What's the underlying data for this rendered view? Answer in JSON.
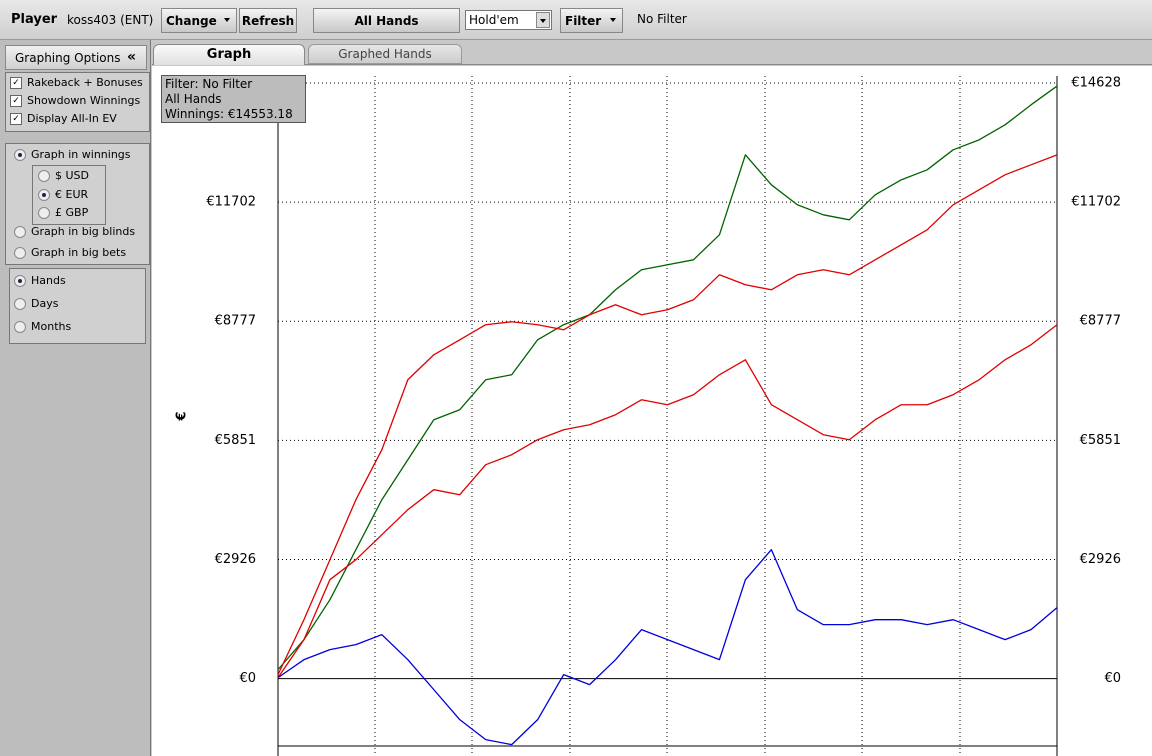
{
  "toolbar": {
    "player_label": "Player",
    "player_name": "koss403 (ENT)",
    "buttons": [
      "Change",
      "Refresh",
      "All Hands",
      "Filter"
    ],
    "game_select": "Hold'em",
    "filter_status": "No Filter"
  },
  "sidebar": {
    "title": "Graphing Options",
    "collapse": "«",
    "checkboxes": [
      "Rakeback + Bonuses",
      "Showdown Winnings",
      "Display All-In EV"
    ],
    "graph_modes": [
      "Graph in winnings",
      "Graph in big blinds",
      "Graph in big bets"
    ],
    "currencies": [
      "$ USD",
      "€ EUR",
      "£ GBP"
    ],
    "x_modes": [
      "Hands",
      "Days",
      "Months"
    ]
  },
  "tabs": [
    "Graph",
    "Graphed Hands"
  ],
  "chart_data": {
    "type": "line",
    "info_box": [
      "Filter: No Filter",
      "All Hands",
      "Winnings: €14553.18"
    ],
    "y_label": "€",
    "categories": [
      null,
      null,
      null,
      null,
      null,
      null,
      null,
      null,
      null,
      null,
      null,
      null,
      null,
      null,
      null,
      null,
      null,
      null,
      null,
      null,
      null,
      null,
      null,
      null,
      null,
      null,
      null,
      null,
      null,
      null,
      null
    ],
    "series": [
      {
        "color": "#006400",
        "values": [
          221,
          957,
          1939,
          3167,
          4394,
          5376,
          6358,
          6604,
          7340,
          7463,
          8322,
          8691,
          8936,
          9550,
          10041,
          10164,
          10286,
          10900,
          12864,
          12128,
          11637,
          11391,
          11268,
          11882,
          12250,
          12496,
          12987,
          13232,
          13601,
          14092,
          14553
        ]
      },
      {
        "color": "#e00000",
        "values": [
          98,
          1448,
          2921,
          4394,
          5622,
          7340,
          7954,
          8322,
          8691,
          8764,
          8691,
          8568,
          8936,
          9182,
          8936,
          9059,
          9304,
          9918,
          9673,
          9550,
          9918,
          10041,
          9918,
          10286,
          10654,
          11023,
          11637,
          12005,
          12373,
          12619,
          12864
        ]
      },
      {
        "color": "#e00000",
        "values": [
          25,
          957,
          2430,
          2921,
          3535,
          4149,
          4640,
          4517,
          5254,
          5499,
          5867,
          6113,
          6236,
          6481,
          6849,
          6727,
          6972,
          7463,
          7831,
          6727,
          6358,
          5990,
          5867,
          6358,
          6727,
          6727,
          6972,
          7340,
          7831,
          8199,
          8691
        ]
      },
      {
        "color": "#0000dd",
        "values": [
          25,
          466,
          712,
          835,
          1080,
          466,
          -270,
          -1007,
          -1498,
          -1621,
          -1007,
          98,
          -147,
          466,
          1203,
          957,
          712,
          466,
          2430,
          3167,
          1694,
          1326,
          1326,
          1448,
          1448,
          1326,
          1448,
          1203,
          957,
          1203,
          1743
        ]
      }
    ],
    "ylim": [
      -1900,
      14800
    ],
    "yticks": [
      {
        "value": 0,
        "label": "€0"
      },
      {
        "value": 2926,
        "label": "€2926"
      },
      {
        "value": 5851,
        "label": "€5851"
      },
      {
        "value": 8777,
        "label": "€8777"
      },
      {
        "value": 11702,
        "label": "€11702"
      },
      {
        "value": 14628,
        "label": "€14628"
      }
    ],
    "grid": true
  }
}
